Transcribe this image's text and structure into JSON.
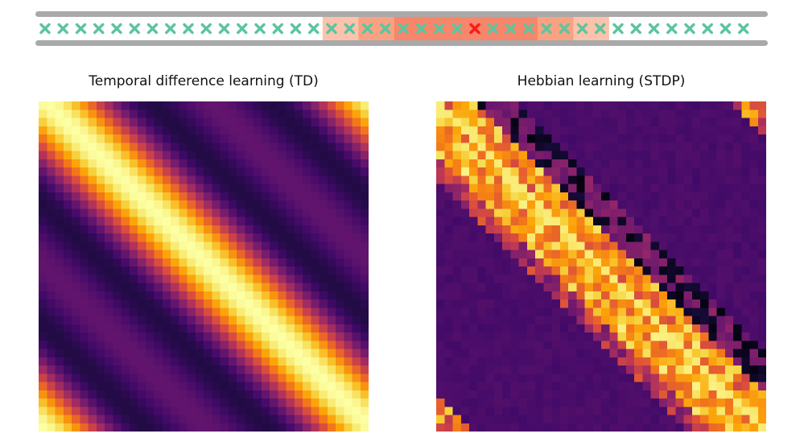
{
  "track": {
    "marker_count": 40,
    "current_index": 24,
    "marker_color": "#5cc5a0",
    "current_marker_color": "#ff1a1a",
    "rail_color": "#a9a9a9",
    "highlight_bands": [
      {
        "from": 16,
        "to": 31,
        "color": "#fbc3ab"
      },
      {
        "from": 18,
        "to": 29,
        "color": "#f9a283"
      },
      {
        "from": 20,
        "to": 27,
        "color": "#f7866a"
      }
    ]
  },
  "panels": {
    "td": {
      "title": "Temporal difference learning  (TD)"
    },
    "stdp": {
      "title": "Hebbian learning (STDP)"
    }
  },
  "heatmap": {
    "grid_size": 40,
    "colormap": "inferno"
  }
}
